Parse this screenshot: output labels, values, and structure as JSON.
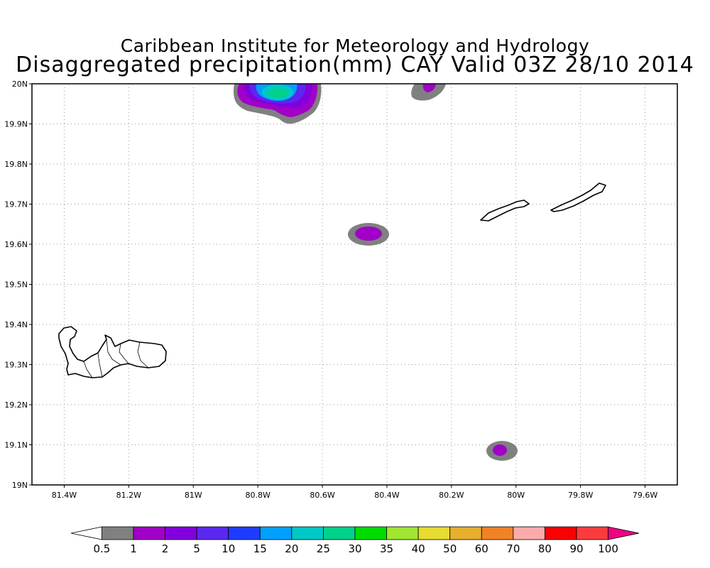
{
  "title": {
    "line1": "Caribbean Institute for Meteorology and Hydrology",
    "line2": "Disaggregated precipitation(mm) CAY Valid 03Z 28/10 2014"
  },
  "map": {
    "lon_range": [
      -81.5,
      -79.5
    ],
    "lat_range": [
      19.0,
      20.0
    ],
    "grid": "dotted",
    "x_ticks": [
      {
        "lon": -81.4,
        "label": "81.4W"
      },
      {
        "lon": -81.2,
        "label": "81.2W"
      },
      {
        "lon": -81.0,
        "label": "81W"
      },
      {
        "lon": -80.8,
        "label": "80.8W"
      },
      {
        "lon": -80.6,
        "label": "80.6W"
      },
      {
        "lon": -80.4,
        "label": "80.4W"
      },
      {
        "lon": -80.2,
        "label": "80.2W"
      },
      {
        "lon": -80.0,
        "label": "80W"
      },
      {
        "lon": -79.8,
        "label": "79.8W"
      },
      {
        "lon": -79.6,
        "label": "79.6W"
      }
    ],
    "y_ticks": [
      {
        "lat": 20.0,
        "label": "20N"
      },
      {
        "lat": 19.9,
        "label": "19.9N"
      },
      {
        "lat": 19.8,
        "label": "19.8N"
      },
      {
        "lat": 19.7,
        "label": "19.7N"
      },
      {
        "lat": 19.6,
        "label": "19.6N"
      },
      {
        "lat": 19.5,
        "label": "19.5N"
      },
      {
        "lat": 19.4,
        "label": "19.4N"
      },
      {
        "lat": 19.3,
        "label": "19.3N"
      },
      {
        "lat": 19.2,
        "label": "19.2N"
      },
      {
        "lat": 19.1,
        "label": "19.1N"
      },
      {
        "lat": 19.0,
        "label": "19N"
      }
    ],
    "features": [
      {
        "name": "grand-cayman",
        "kind": "island"
      },
      {
        "name": "little-cayman",
        "kind": "island"
      },
      {
        "name": "cayman-brac",
        "kind": "island"
      },
      {
        "name": "rain-cell-north",
        "kind": "precipitation",
        "max_mm": "20-25"
      },
      {
        "name": "rain-cell-northeast",
        "kind": "precipitation",
        "max_mm": "1-2"
      },
      {
        "name": "rain-cell-central",
        "kind": "precipitation",
        "max_mm": "1-2"
      },
      {
        "name": "rain-cell-south",
        "kind": "precipitation",
        "max_mm": "1-2"
      }
    ]
  },
  "colorbar": {
    "colors": [
      "#ffffff",
      "#808080",
      "#a000c8",
      "#8200dc",
      "#5a28f0",
      "#1e3cff",
      "#00a0ff",
      "#00c8c8",
      "#00d28c",
      "#00dc00",
      "#a0e632",
      "#e6dc32",
      "#e6af2d",
      "#f08228",
      "#fcaaaa",
      "#fa0000",
      "#fa3c3c",
      "#f00082"
    ],
    "labels": [
      "0.5",
      "1",
      "2",
      "5",
      "10",
      "15",
      "20",
      "25",
      "30",
      "35",
      "40",
      "50",
      "60",
      "70",
      "80",
      "90",
      "100"
    ]
  }
}
